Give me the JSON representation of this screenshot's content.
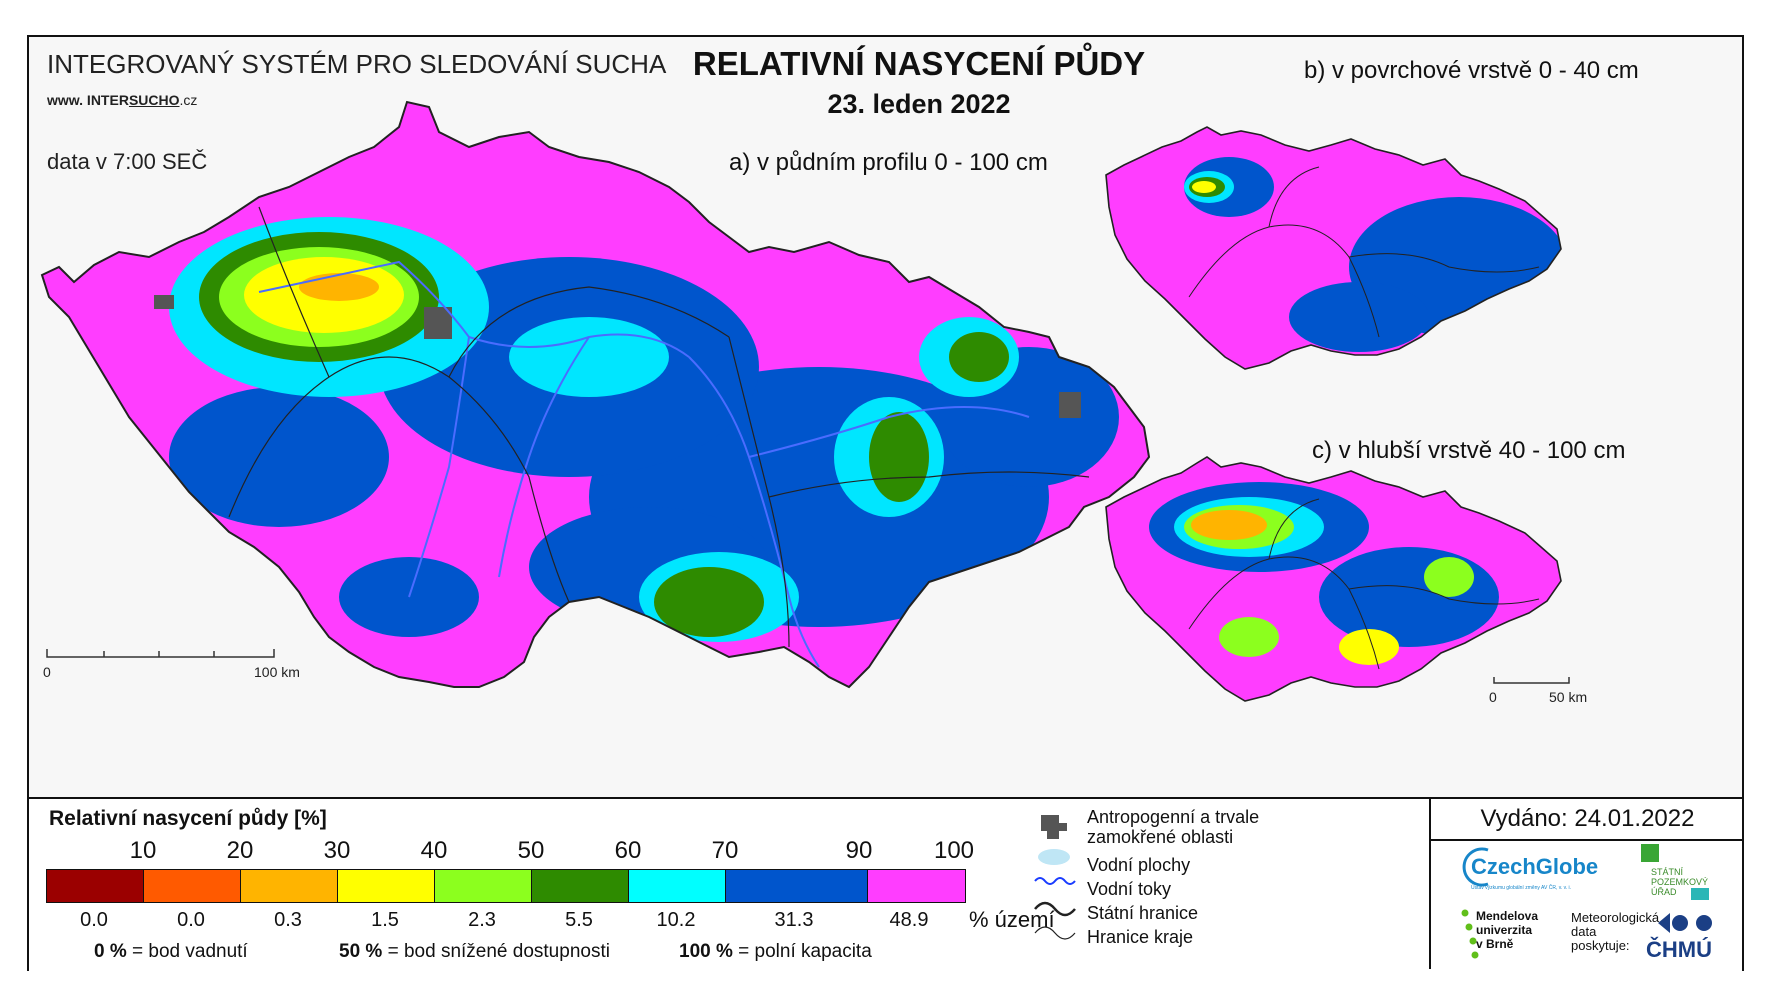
{
  "header": {
    "system_title": "INTEGROVANÝ SYSTÉM PRO SLEDOVÁNÍ SUCHA",
    "website_prefix": "www. INTER",
    "website_accent": "SUCHO",
    "website_suffix": ".cz",
    "data_time": "data v 7:00 SEČ",
    "main_title": "RELATIVNÍ NASYCENÍ PŮDY",
    "date": "23. leden 2022"
  },
  "maps": {
    "a_title": "a) v půdním profilu 0 - 100 cm",
    "b_title": "b) v povrchové vrstvě 0 - 40 cm",
    "c_title": "c) v hlubší vrstvě 40 - 100 cm",
    "scale_main_start": "0",
    "scale_main_end": "100 km",
    "scale_small_start": "0",
    "scale_small_end": "50 km"
  },
  "legend": {
    "title": "Relativní nasycení půdy [%]",
    "thresholds": [
      "10",
      "20",
      "30",
      "40",
      "50",
      "60",
      "70",
      "90",
      "100"
    ],
    "colors": [
      "#9b0000",
      "#ff5a00",
      "#ffb400",
      "#ffff00",
      "#8cff1e",
      "#2e8b00",
      "#00ffff",
      "#0055cc",
      "#ff3dff"
    ],
    "area_percent": [
      "0.0",
      "0.0",
      "0.3",
      "1.5",
      "2.3",
      "5.5",
      "10.2",
      "31.3",
      "48.9"
    ],
    "area_unit": "% území",
    "note1_value": "0 %",
    "note1_text": "= bod vadnutí",
    "note2_value": "50 %",
    "note2_text": "= bod snížené dostupnosti",
    "note3_value": "100 %",
    "note3_text": "= polní kapacita"
  },
  "map_key": {
    "anthropogenic": "Antropogenní a trvale zamokřené oblasti",
    "water_bodies": "Vodní plochy",
    "streams": "Vodní toky",
    "state_border": "Státní hranice",
    "region_border": "Hranice kraje"
  },
  "issuer": {
    "issued": "Vydáno: 24.01.2022",
    "czechglobe": "CzechGlobe",
    "czechglobe_sub": "Ústav výzkumu globální změny AV ČR, v. v. i.",
    "spu_line1": "STÁTNÍ",
    "spu_line2": "POZEMKOVÝ",
    "spu_line3": "ÚŘAD",
    "mendel_line1": "Mendelova",
    "mendel_line2": "univerzita",
    "mendel_line3": "v Brně",
    "meteo_line1": "Meteorologická",
    "meteo_line2": "data",
    "meteo_line3": "poskytuje:",
    "chmu": "ČHMÚ"
  }
}
